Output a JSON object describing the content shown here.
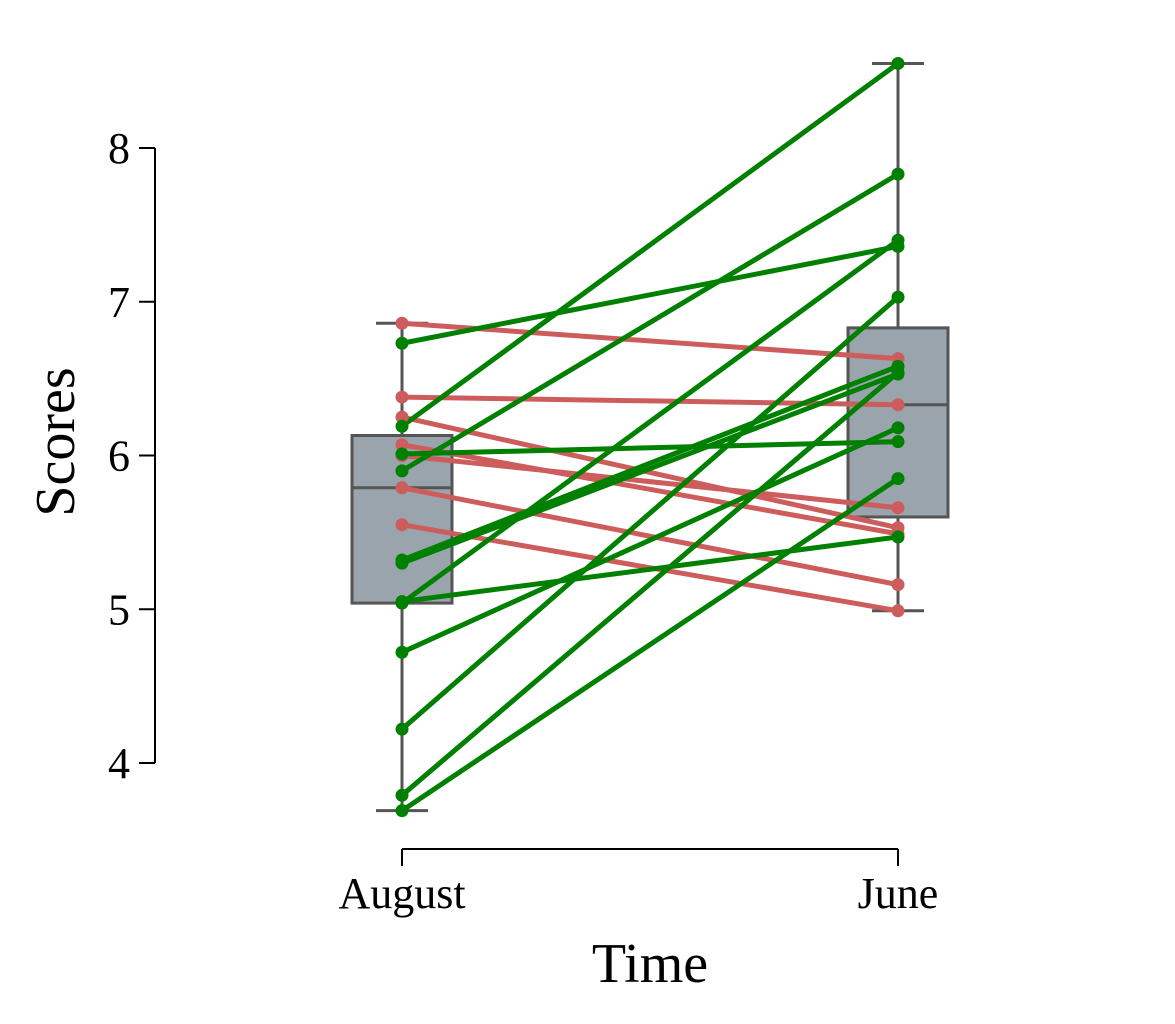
{
  "chart_data": {
    "type": "box",
    "xlabel": "Time",
    "ylabel": "Scores",
    "categories": [
      "August",
      "June"
    ],
    "yticks": [
      4,
      5,
      6,
      7,
      8
    ],
    "ylim": [
      3.45,
      8.65
    ],
    "grid": false,
    "legend": "none",
    "colors": {
      "increase": "#008000",
      "decrease": "#cd5c5c",
      "box_fill": "#9aa4ac",
      "box_edge": "#555555",
      "axis": "#000000"
    },
    "boxes": [
      {
        "category": "August",
        "whisker_low": 3.69,
        "q1": 5.04,
        "median": 5.79,
        "q3": 6.13,
        "whisker_high": 6.86
      },
      {
        "category": "June",
        "whisker_low": 4.99,
        "q1": 5.6,
        "median": 6.33,
        "q3": 6.83,
        "whisker_high": 8.55
      }
    ],
    "pairs": [
      {
        "august": 6.86,
        "june": 6.63,
        "trend": "decrease"
      },
      {
        "august": 6.38,
        "june": 6.33,
        "trend": "decrease"
      },
      {
        "august": 6.25,
        "june": 5.53,
        "trend": "decrease"
      },
      {
        "august": 6.07,
        "june": 5.49,
        "trend": "decrease"
      },
      {
        "august": 6.0,
        "june": 5.66,
        "trend": "decrease"
      },
      {
        "august": 5.79,
        "june": 5.16,
        "trend": "decrease"
      },
      {
        "august": 5.55,
        "june": 4.99,
        "trend": "decrease"
      },
      {
        "august": 6.73,
        "june": 7.36,
        "trend": "increase"
      },
      {
        "august": 6.19,
        "june": 8.55,
        "trend": "increase"
      },
      {
        "august": 6.01,
        "june": 6.09,
        "trend": "increase"
      },
      {
        "august": 5.9,
        "june": 7.83,
        "trend": "increase"
      },
      {
        "august": 5.32,
        "june": 6.58,
        "trend": "increase"
      },
      {
        "august": 5.3,
        "june": 6.53,
        "trend": "increase"
      },
      {
        "august": 5.05,
        "june": 5.47,
        "trend": "increase"
      },
      {
        "august": 5.04,
        "june": 7.4,
        "trend": "increase"
      },
      {
        "august": 4.72,
        "june": 6.18,
        "trend": "increase"
      },
      {
        "august": 4.22,
        "june": 7.03,
        "trend": "increase"
      },
      {
        "august": 3.79,
        "june": 6.54,
        "trend": "increase"
      },
      {
        "august": 3.69,
        "june": 5.85,
        "trend": "increase"
      }
    ]
  }
}
